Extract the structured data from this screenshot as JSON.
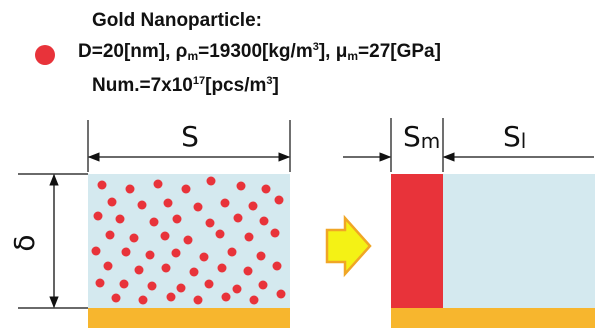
{
  "legend": {
    "title": "Gold Nanoparticle:",
    "line2": {
      "d": "D=20[nm],",
      "rho_sym": "ρ",
      "rho_sub": "m",
      "rho_val": "=19300[kg/m",
      "rho_exp": "3",
      "rho_end": "],",
      "mu_sym": "μ",
      "mu_sub": "m",
      "mu_val": "=27[GPa]"
    },
    "line3": {
      "pre": "Num.=7x10",
      "exp": "17",
      "mid": "[pcs/m",
      "exp2": "3",
      "end": "]"
    }
  },
  "labels": {
    "s": "S",
    "sm_main": "S",
    "sm_sub": "m",
    "sl_main": "S",
    "sl_sub": "l",
    "delta": "δ"
  },
  "colors": {
    "particle": "#e8333a",
    "matrix": "#d4e9ef",
    "substrate": "#f7b62e",
    "arrow_fill": "#f4f215",
    "arrow_stroke": "#f0a626",
    "solid_block": "#e8333a"
  }
}
